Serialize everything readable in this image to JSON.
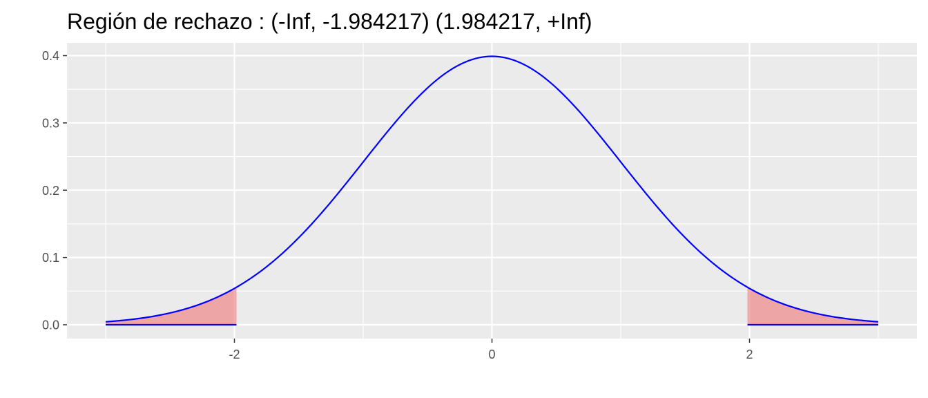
{
  "chart_data": {
    "type": "area",
    "title": "Región de rechazo : (-Inf, -1.984217)  (1.984217, +Inf)",
    "xlabel": "",
    "ylabel": "",
    "xlim": [
      -3,
      3
    ],
    "ylim": [
      0,
      0.4
    ],
    "x_ticks": [
      -2,
      0,
      2
    ],
    "x_tick_labels": [
      "-2",
      "0",
      "2"
    ],
    "y_ticks": [
      0,
      0.1,
      0.2,
      0.3,
      0.4
    ],
    "y_tick_labels": [
      "0.0",
      "0.1",
      "0.2",
      "0.3",
      "0.4"
    ],
    "grid": true,
    "legend": "none",
    "critical_value": 1.984217,
    "curve": {
      "distribution": "standard normal density",
      "color": "#0000ff"
    },
    "rejection_regions": [
      {
        "from": -3,
        "to": -1.984217
      },
      {
        "from": 1.984217,
        "to": 3
      }
    ],
    "shade_color": "#f08080",
    "panel_background": "#ebebeb",
    "grid_color": "#ffffff"
  }
}
